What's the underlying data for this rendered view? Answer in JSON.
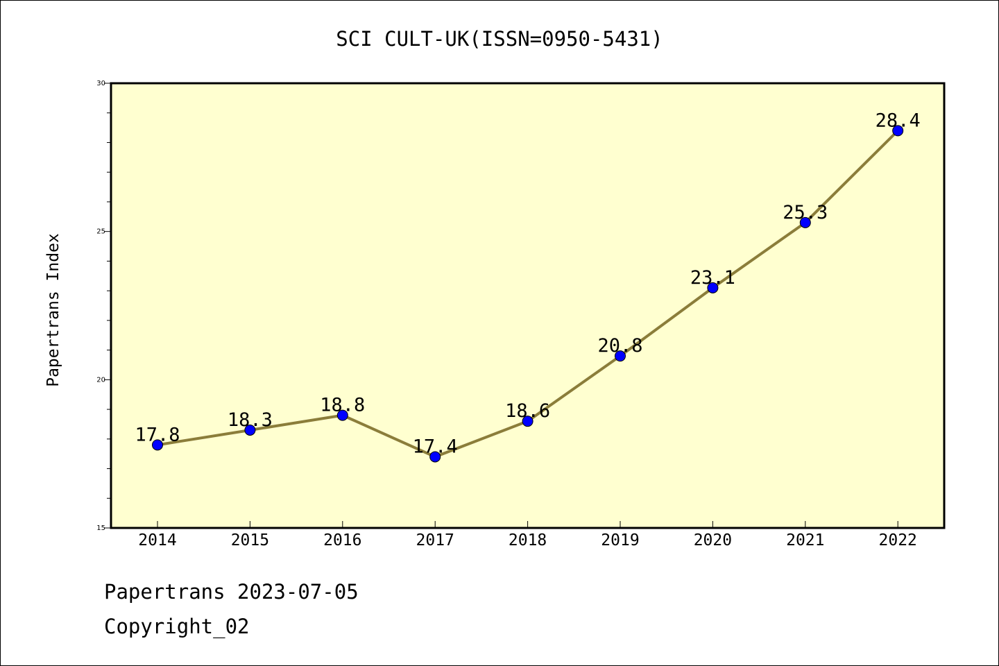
{
  "chart_data": {
    "type": "line",
    "title": "SCI CULT-UK(ISSN=0950-5431)",
    "ylabel": "Papertrans Index",
    "xlabel": "",
    "categories": [
      "2014",
      "2015",
      "2016",
      "2017",
      "2018",
      "2019",
      "2020",
      "2021",
      "2022"
    ],
    "values": [
      17.8,
      18.3,
      18.8,
      17.4,
      18.6,
      20.8,
      23.1,
      25.3,
      28.4
    ],
    "data_labels": [
      "17.8",
      "18.3",
      "18.8",
      "17.4",
      "18.6",
      "20.8",
      "23.1",
      "25.3",
      "28.4"
    ],
    "ylim": [
      15,
      30
    ],
    "yticks": [
      "15",
      "20",
      "25",
      "30"
    ],
    "y_minor_step": 1,
    "grid": false,
    "colors": {
      "plot_background": "#ffffd0",
      "line": "#8b7d3a",
      "marker": "#0000ff"
    }
  },
  "footer": {
    "date_line": "Papertrans 2023-07-05",
    "copyright": "Copyright_02"
  }
}
